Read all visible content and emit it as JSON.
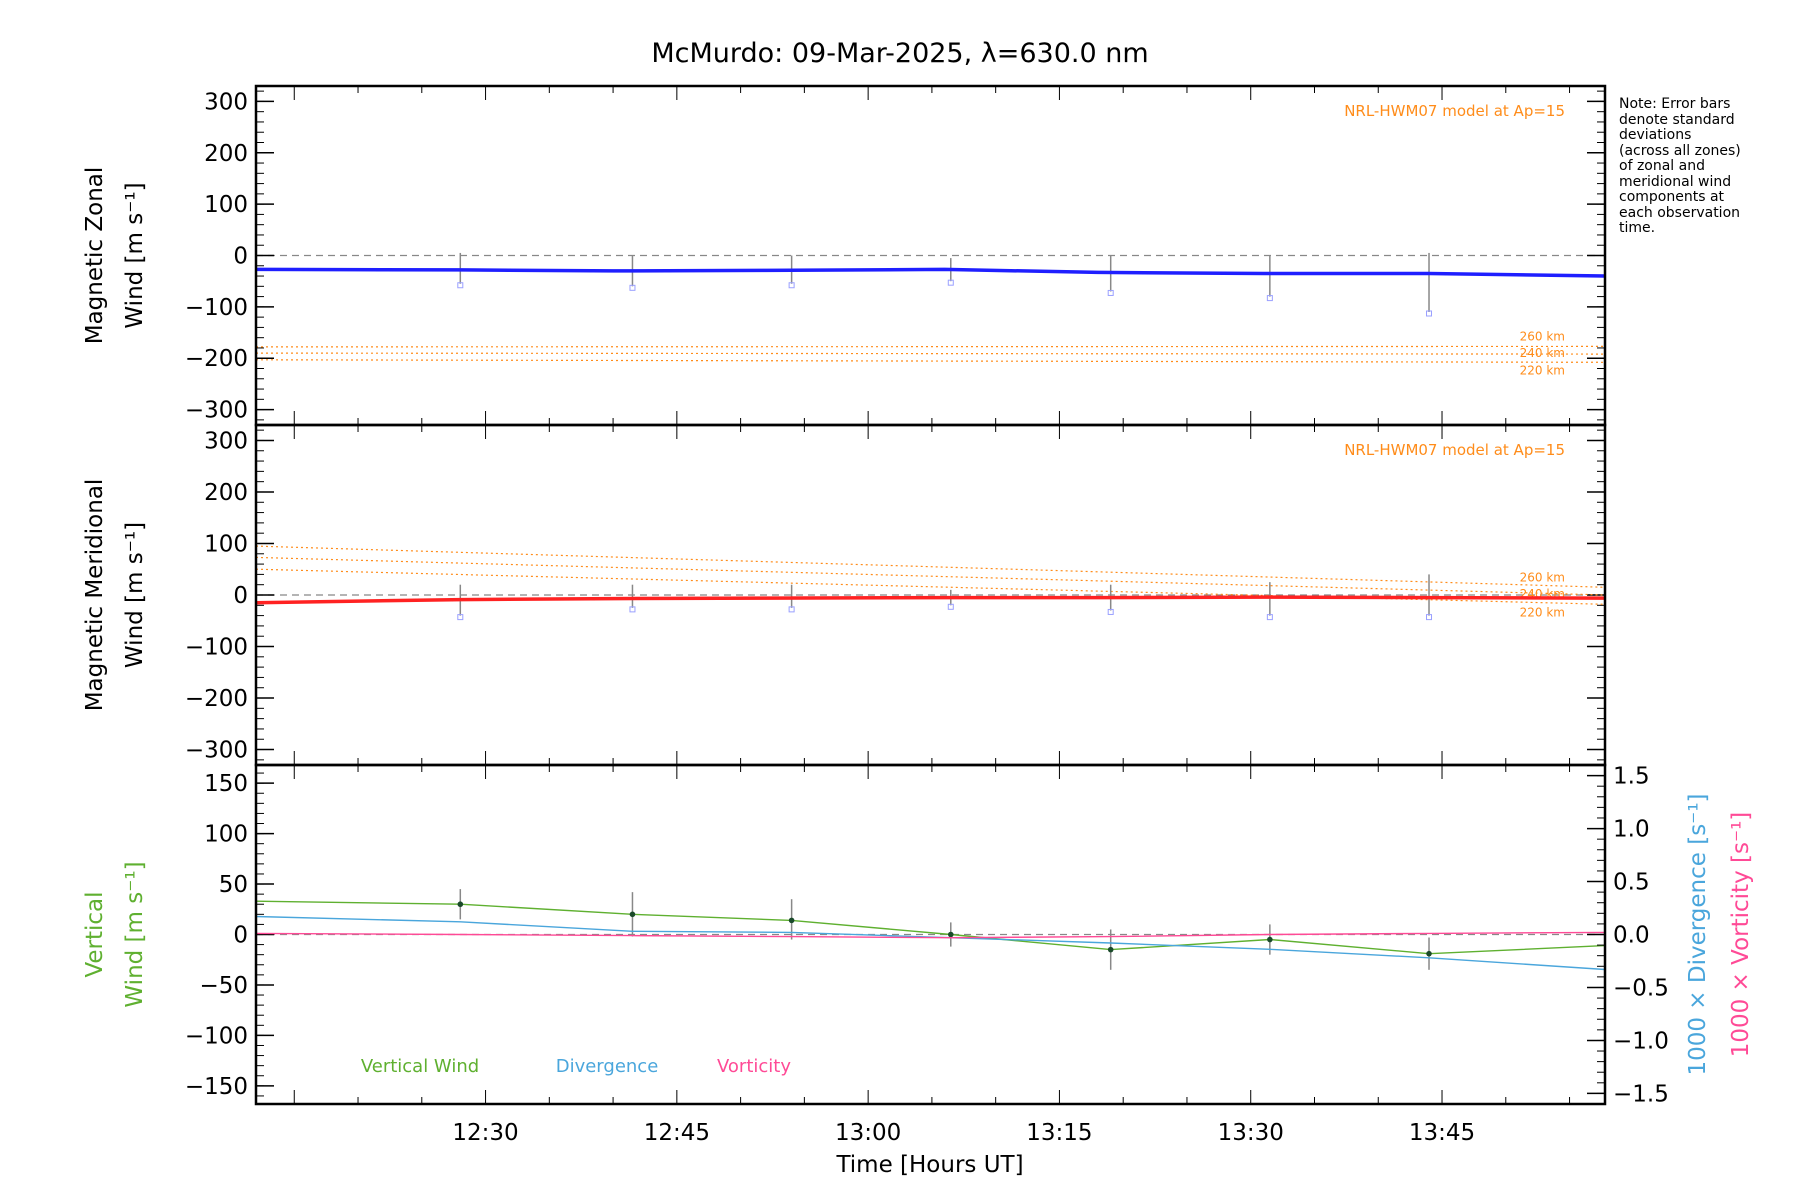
{
  "figure": {
    "title": "McMurdo: 09-Mar-2025, λ=630.0 nm",
    "note_lines": [
      "Note: Error bars",
      "denote standard",
      "deviations",
      "(across all zones)",
      "of zonal and",
      "meridional wind",
      "components at",
      "each observation",
      "time."
    ],
    "colors": {
      "zonal": "#1f1fff",
      "meridional": "#ff2222",
      "model": "#ff8c1a",
      "vertical": "#5fb030",
      "divergence": "#4aa6dc",
      "vorticity": "#ff4a96",
      "errorbar": "#888888",
      "zero_line": "#888888"
    }
  },
  "chart_data": [
    {
      "type": "line",
      "panel": "zonal",
      "ylabel_lines": [
        "Magnetic Zonal",
        "Wind [m s⁻¹]"
      ],
      "ylim": [
        -330,
        330
      ],
      "yticks": [
        300,
        200,
        100,
        0,
        -100,
        -200,
        -300
      ],
      "ytick_labels": [
        "300",
        "200",
        "100",
        "0",
        "−100",
        "−200",
        "−300"
      ],
      "xlim": [
        12.2,
        13.963
      ],
      "x": [
        12.2,
        12.467,
        12.667,
        12.867,
        13.1,
        13.3,
        13.517,
        13.733,
        13.963
      ],
      "series": [
        {
          "name": "Zonal wind",
          "values": [
            -27,
            -28,
            -30,
            -29,
            -27,
            -33,
            -35,
            -35,
            -40
          ]
        }
      ],
      "obs_times": [
        12.467,
        12.692,
        12.9,
        13.108,
        13.317,
        13.525,
        13.733
      ],
      "errorbars": [
        {
          "x": 12.467,
          "low": -55,
          "high": 5
        },
        {
          "x": 12.692,
          "low": -60,
          "high": 0
        },
        {
          "x": 12.9,
          "low": -55,
          "high": 0
        },
        {
          "x": 13.108,
          "low": -50,
          "high": -5
        },
        {
          "x": 13.317,
          "low": -70,
          "high": 0
        },
        {
          "x": 13.525,
          "low": -80,
          "high": 0
        },
        {
          "x": 13.733,
          "low": -110,
          "high": 5
        }
      ],
      "model": {
        "label": "NRL-HWM07 model at Ap=15",
        "lines": [
          {
            "name": "260 km",
            "x": [
              12.2,
              13.963
            ],
            "values": [
              -178,
              -177
            ]
          },
          {
            "name": "240 km",
            "x": [
              12.2,
              13.963
            ],
            "values": [
              -190,
              -192
            ]
          },
          {
            "name": "220 km",
            "x": [
              12.2,
              13.963
            ],
            "values": [
              -203,
              -208
            ]
          }
        ]
      }
    },
    {
      "type": "line",
      "panel": "meridional",
      "ylabel_lines": [
        "Magnetic Meridional",
        "Wind [m s⁻¹]"
      ],
      "ylim": [
        -330,
        330
      ],
      "yticks": [
        300,
        200,
        100,
        0,
        -100,
        -200,
        -300
      ],
      "ytick_labels": [
        "300",
        "200",
        "100",
        "0",
        "−100",
        "−200",
        "−300"
      ],
      "xlim": [
        12.2,
        13.963
      ],
      "x": [
        12.2,
        12.467,
        12.667,
        12.867,
        13.1,
        13.3,
        13.517,
        13.733,
        13.963
      ],
      "series": [
        {
          "name": "Meridional wind",
          "values": [
            -15,
            -9,
            -7,
            -6,
            -5,
            -5,
            -4,
            -5,
            -6
          ]
        }
      ],
      "obs_times": [
        12.467,
        12.692,
        12.9,
        13.108,
        13.317,
        13.525,
        13.733
      ],
      "errorbars": [
        {
          "x": 12.467,
          "low": -40,
          "high": 20
        },
        {
          "x": 12.692,
          "low": -25,
          "high": 20
        },
        {
          "x": 12.9,
          "low": -25,
          "high": 20
        },
        {
          "x": 13.108,
          "low": -20,
          "high": 10
        },
        {
          "x": 13.317,
          "low": -30,
          "high": 20
        },
        {
          "x": 13.525,
          "low": -40,
          "high": 25
        },
        {
          "x": 13.733,
          "low": -40,
          "high": 40
        }
      ],
      "model": {
        "label": "NRL-HWM07 model at Ap=15",
        "lines": [
          {
            "name": "260 km",
            "x": [
              12.2,
              13.963
            ],
            "values": [
              95,
              15
            ]
          },
          {
            "name": "240 km",
            "x": [
              12.2,
              13.963
            ],
            "values": [
              73,
              0
            ]
          },
          {
            "name": "220 km",
            "x": [
              12.2,
              13.963
            ],
            "values": [
              50,
              -18
            ]
          }
        ]
      }
    },
    {
      "type": "line",
      "panel": "vertical",
      "ylabel_lines": [
        "Vertical",
        "Wind [m s⁻¹]"
      ],
      "ylim": [
        -168,
        168
      ],
      "yticks": [
        150,
        100,
        50,
        0,
        -50,
        -100,
        -150
      ],
      "ytick_labels": [
        "150",
        "100",
        "50",
        "0",
        "−50",
        "−100",
        "−150"
      ],
      "right_axis": {
        "label_divergence": "1000 × Divergence [s⁻¹]",
        "label_vorticity": "1000 × Vorticity [s⁻¹]",
        "ylim": [
          -1.6,
          1.6
        ],
        "yticks": [
          1.5,
          1.0,
          0.5,
          0.0,
          -0.5,
          -1.0,
          -1.5
        ],
        "ytick_labels": [
          "1.5",
          "1.0",
          "0.5",
          "0.0",
          "−0.5",
          "−1.0",
          "−1.5"
        ]
      },
      "xlim": [
        12.2,
        13.963
      ],
      "xticks": [
        12.5,
        12.75,
        13.0,
        13.25,
        13.5,
        13.75
      ],
      "xtick_labels": [
        "12:30",
        "12:45",
        "13:00",
        "13:15",
        "13:30",
        "13:45"
      ],
      "xlabel": "Time [Hours UT]",
      "series": [
        {
          "name": "Vertical Wind",
          "axis": "left",
          "x": [
            12.2,
            12.467,
            12.692,
            12.9,
            13.108,
            13.317,
            13.525,
            13.733,
            13.963
          ],
          "values": [
            33,
            30,
            20,
            14,
            0,
            -15,
            -5,
            -19,
            -11
          ]
        },
        {
          "name": "Divergence",
          "axis": "right",
          "x": [
            12.2,
            12.467,
            12.692,
            12.9,
            13.108,
            13.317,
            13.525,
            13.733,
            13.963
          ],
          "values": [
            0.17,
            0.12,
            0.03,
            0.02,
            -0.03,
            -0.08,
            -0.14,
            -0.22,
            -0.33
          ]
        },
        {
          "name": "Vorticity",
          "axis": "right",
          "x": [
            12.2,
            12.467,
            12.692,
            12.9,
            13.108,
            13.317,
            13.525,
            13.733,
            13.963
          ],
          "values": [
            0.01,
            0.0,
            -0.01,
            -0.02,
            -0.03,
            -0.02,
            0.0,
            0.01,
            0.02
          ]
        }
      ],
      "obs_times": [
        12.467,
        12.692,
        12.9,
        13.108,
        13.317,
        13.525,
        13.733
      ],
      "errorbars": [
        {
          "x": 12.467,
          "low": 15,
          "high": 45
        },
        {
          "x": 12.692,
          "low": -2,
          "high": 42
        },
        {
          "x": 12.9,
          "low": -5,
          "high": 35
        },
        {
          "x": 13.108,
          "low": -12,
          "high": 12
        },
        {
          "x": 13.317,
          "low": -35,
          "high": 5
        },
        {
          "x": 13.525,
          "low": -20,
          "high": 10
        },
        {
          "x": 13.733,
          "low": -35,
          "high": -3
        }
      ],
      "legend": [
        "Vertical Wind",
        "Divergence",
        "Vorticity"
      ]
    }
  ]
}
